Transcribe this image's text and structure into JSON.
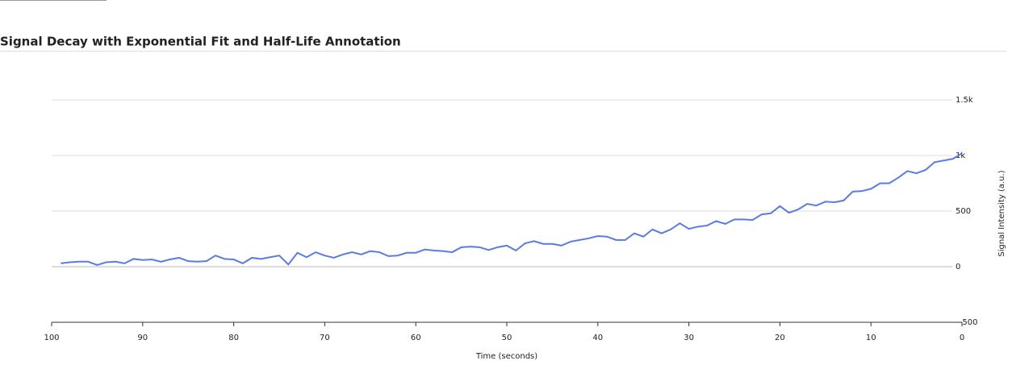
{
  "chart_data": {
    "type": "line",
    "title": "Signal Decay with Exponential Fit and Half-Life Annotation",
    "x_label": "Time (seconds)",
    "y_label": "Signal Intensity (a.u.)",
    "x": [
      0,
      1,
      2,
      3,
      4,
      5,
      6,
      7,
      8,
      9,
      10,
      11,
      12,
      13,
      14,
      15,
      16,
      17,
      18,
      19,
      20,
      21,
      22,
      23,
      24,
      25,
      26,
      27,
      28,
      29,
      30,
      31,
      32,
      33,
      34,
      35,
      36,
      37,
      38,
      39,
      40,
      41,
      42,
      43,
      44,
      45,
      46,
      47,
      48,
      49,
      50,
      51,
      52,
      53,
      54,
      55,
      56,
      57,
      58,
      59,
      60,
      61,
      62,
      63,
      64,
      65,
      66,
      67,
      68,
      69,
      70,
      71,
      72,
      73,
      74,
      75,
      76,
      77,
      78,
      79,
      80,
      81,
      82,
      83,
      84,
      85,
      86,
      87,
      88,
      89,
      90,
      91,
      92,
      93,
      94,
      95,
      96,
      97,
      98,
      99
    ],
    "values": [
      1020,
      970,
      955,
      940,
      870,
      840,
      860,
      800,
      750,
      750,
      700,
      680,
      675,
      595,
      580,
      585,
      550,
      565,
      515,
      485,
      545,
      480,
      470,
      420,
      425,
      425,
      385,
      410,
      370,
      360,
      340,
      390,
      335,
      300,
      335,
      270,
      300,
      240,
      240,
      270,
      275,
      255,
      240,
      225,
      190,
      205,
      205,
      230,
      210,
      145,
      190,
      175,
      150,
      175,
      180,
      175,
      130,
      140,
      145,
      155,
      125,
      125,
      100,
      95,
      130,
      140,
      110,
      130,
      110,
      80,
      100,
      130,
      85,
      125,
      20,
      100,
      85,
      70,
      80,
      30,
      65,
      70,
      100,
      50,
      45,
      50,
      80,
      65,
      45,
      65,
      60,
      70,
      30,
      45,
      40,
      15,
      45,
      45,
      40,
      30
    ],
    "color": "#5b7be0",
    "xlim": [
      100,
      0
    ],
    "xticks": [
      100,
      90,
      80,
      70,
      60,
      50,
      40,
      30,
      20,
      10,
      0
    ],
    "ylim": [
      -500,
      1500
    ],
    "yticks": [
      {
        "value": -500,
        "label": "−500"
      },
      0,
      500,
      {
        "value": 1000,
        "label": "1k"
      },
      {
        "value": 1500,
        "label": "1.5k"
      }
    ],
    "grid": true
  }
}
